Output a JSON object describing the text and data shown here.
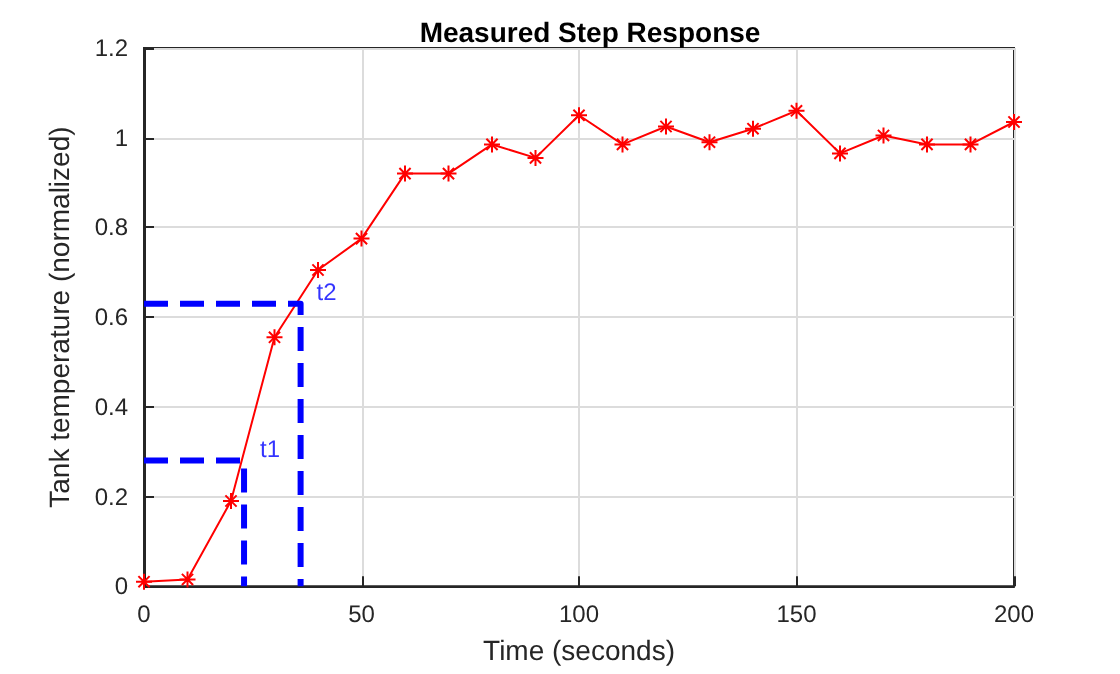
{
  "chart_data": {
    "type": "line",
    "title": "Measured Step Response",
    "xlabel": "Time (seconds)",
    "ylabel": "Tank temperature (normalized)",
    "x": [
      0,
      10,
      20,
      30,
      40,
      50,
      60,
      70,
      80,
      90,
      100,
      110,
      120,
      130,
      140,
      150,
      160,
      170,
      180,
      190,
      200
    ],
    "series": [
      {
        "color": "#ff0000",
        "marker": "cross",
        "line_style": "solid",
        "values": [
          0.01,
          0.015,
          0.19,
          0.555,
          0.705,
          0.775,
          0.92,
          0.92,
          0.985,
          0.955,
          1.05,
          0.985,
          1.025,
          0.99,
          1.02,
          1.06,
          0.965,
          1.005,
          0.985,
          0.985,
          1.035
        ]
      },
      {
        "color": "#0000ff",
        "marker": "none",
        "line_style": "dashed",
        "x": [
          0,
          23,
          23
        ],
        "values": [
          0.28,
          0.28,
          0
        ]
      },
      {
        "color": "#0000ff",
        "marker": "none",
        "line_style": "dashed",
        "x": [
          0,
          36,
          36
        ],
        "values": [
          0.63,
          0.63,
          0
        ]
      }
    ],
    "annotations": [
      {
        "text": "t1",
        "x": 23,
        "y": 0.28
      },
      {
        "text": "t2",
        "x": 36,
        "y": 0.63
      }
    ],
    "xlim": [
      0,
      200
    ],
    "xticks": [
      0,
      50,
      100,
      150,
      200
    ],
    "ylim": [
      0,
      1.2
    ],
    "yticks": [
      0,
      0.2,
      0.4,
      0.6,
      0.8,
      1,
      1.2
    ],
    "grid": true
  }
}
